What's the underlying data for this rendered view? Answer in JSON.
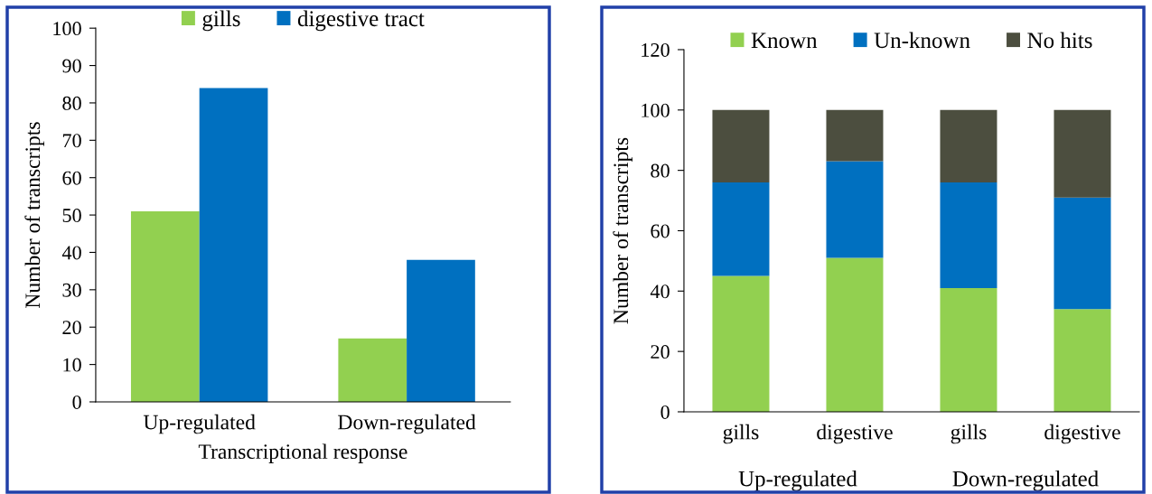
{
  "chart_data": [
    {
      "type": "bar",
      "categories": [
        "Up-regulated",
        "Down-regulated"
      ],
      "series": [
        {
          "name": "gills",
          "color": "#92d050",
          "values": [
            51,
            17
          ]
        },
        {
          "name": "digestive tract",
          "color": "#0070c0",
          "values": [
            84,
            38
          ]
        }
      ],
      "xlabel": "Transcriptional response",
      "ylabel": "Number of transcripts",
      "ylim": [
        0,
        100
      ],
      "yticks": [
        0,
        10,
        20,
        30,
        40,
        50,
        60,
        70,
        80,
        90,
        100
      ],
      "legend": "top"
    },
    {
      "type": "bar",
      "stacked": true,
      "categories": [
        "gills",
        "digestive",
        "gills",
        "digestive"
      ],
      "series": [
        {
          "name": "Known",
          "color": "#92d050",
          "values": [
            45,
            51,
            41,
            34
          ]
        },
        {
          "name": "Un-known",
          "color": "#0070c0",
          "values": [
            31,
            32,
            35,
            37
          ]
        },
        {
          "name": "No hits",
          "color": "#4c4e3f",
          "values": [
            24,
            17,
            24,
            29
          ]
        }
      ],
      "ylabel": "Number of transcripts",
      "ylim": [
        0,
        120
      ],
      "yticks": [
        0,
        20,
        40,
        60,
        80,
        100,
        120
      ],
      "legend": "top",
      "annotations": [
        "Up-regulated",
        "Down-regulated"
      ]
    }
  ]
}
